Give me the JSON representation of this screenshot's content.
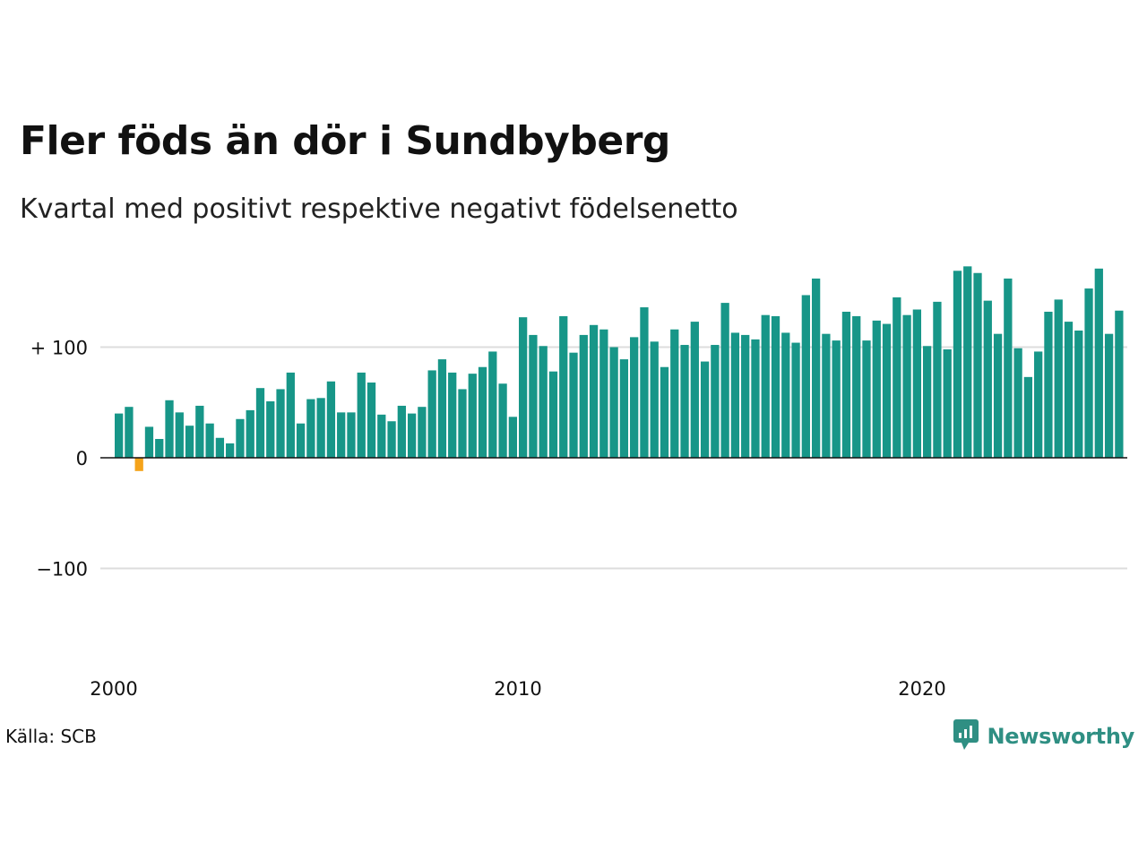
{
  "header": {
    "title": "Fler föds än dör i Sundbyberg",
    "subtitle": "Kvartal med positivt respektive negativt födelsenetto"
  },
  "footer": {
    "source": "Källa: SCB",
    "brand": "Newsworthy"
  },
  "colors": {
    "positive": "#179688",
    "negative": "#f5a31a",
    "grid": "#dddddd",
    "zero_line": "#111111",
    "brand": "#2f8f83"
  },
  "icons": {
    "brand_logo": "newsworthy-logo-icon"
  },
  "chart_data": {
    "type": "bar",
    "title": "Fler föds än dör i Sundbyberg",
    "subtitle": "Kvartal med positivt respektive negativt födelsenetto",
    "xlabel": "",
    "ylabel": "",
    "ylim": [
      -180,
      180
    ],
    "x_range": [
      2000,
      2025.3
    ],
    "y_ticks": [
      {
        "value": 100,
        "label": "+ 100"
      },
      {
        "value": 0,
        "label": "0"
      },
      {
        "value": -100,
        "label": "−100"
      }
    ],
    "x_ticks": [
      {
        "value": 2000,
        "label": "2000"
      },
      {
        "value": 2010,
        "label": "2010"
      },
      {
        "value": 2020,
        "label": "2020"
      }
    ],
    "grid": true,
    "legend": "none",
    "start_quarter": "2000 Q1",
    "values": [
      40,
      46,
      -12,
      28,
      17,
      52,
      41,
      29,
      47,
      31,
      18,
      13,
      35,
      43,
      63,
      51,
      62,
      77,
      31,
      53,
      54,
      69,
      41,
      41,
      77,
      68,
      39,
      33,
      47,
      40,
      46,
      79,
      89,
      77,
      62,
      76,
      82,
      96,
      67,
      37,
      127,
      111,
      101,
      78,
      128,
      95,
      111,
      120,
      116,
      100,
      89,
      109,
      136,
      105,
      82,
      116,
      102,
      123,
      87,
      102,
      140,
      113,
      111,
      107,
      129,
      128,
      113,
      104,
      147,
      162,
      112,
      106,
      132,
      128,
      106,
      124,
      121,
      145,
      129,
      134,
      101,
      141,
      98,
      169,
      173,
      167,
      142,
      112,
      162,
      99,
      73,
      96,
      132,
      143,
      123,
      115,
      153,
      171,
      112,
      133
    ]
  }
}
